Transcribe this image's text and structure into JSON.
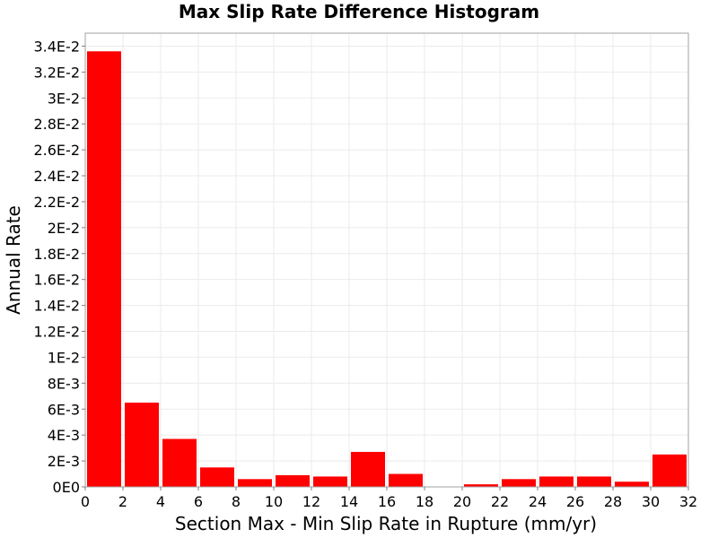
{
  "chart_data": {
    "type": "bar",
    "title": "Max Slip Rate Difference Histogram",
    "xlabel": "Section Max - Min Slip Rate in Rupture (mm/yr)",
    "ylabel": "Annual Rate",
    "xlim": [
      0,
      32
    ],
    "ylim": [
      0,
      0.035
    ],
    "xticks": [
      "0",
      "2",
      "4",
      "6",
      "8",
      "10",
      "12",
      "14",
      "16",
      "18",
      "20",
      "22",
      "24",
      "26",
      "28",
      "30",
      "32"
    ],
    "xtick_values": [
      0,
      2,
      4,
      6,
      8,
      10,
      12,
      14,
      16,
      18,
      20,
      22,
      24,
      26,
      28,
      30,
      32
    ],
    "yticks": [
      "0E0",
      "2E-3",
      "4E-3",
      "6E-3",
      "8E-3",
      "1E-2",
      "1.2E-2",
      "1.4E-2",
      "1.6E-2",
      "1.8E-2",
      "2E-2",
      "2.2E-2",
      "2.4E-2",
      "2.6E-2",
      "2.8E-2",
      "3E-2",
      "3.2E-2",
      "3.4E-2"
    ],
    "ytick_values": [
      0,
      0.002,
      0.004,
      0.006,
      0.008,
      0.01,
      0.012,
      0.014,
      0.016,
      0.018,
      0.02,
      0.022,
      0.024,
      0.026,
      0.028,
      0.03,
      0.032,
      0.034
    ],
    "grid": true,
    "legend": "none",
    "bin_width": 2,
    "x": [
      1,
      3,
      5,
      7,
      9,
      11,
      13,
      15,
      17,
      19,
      21,
      23,
      25,
      27,
      29,
      31
    ],
    "values": [
      0.0336,
      0.0065,
      0.0037,
      0.0015,
      0.0006,
      0.0009,
      0.0008,
      0.0027,
      0.001,
      0.0,
      0.0002,
      0.0006,
      0.0008,
      0.0008,
      0.0004,
      0.0025
    ],
    "bar_color": "#ff0000",
    "background_color": "#ffffff",
    "grid_color": "#ebebeb"
  }
}
